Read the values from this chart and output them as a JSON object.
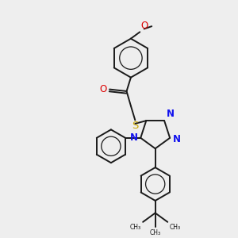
{
  "bg_color": "#eeeeee",
  "bond_color": "#1a1a1a",
  "N_color": "#1010ee",
  "O_color": "#dd0000",
  "S_color": "#ccaa00",
  "bond_width": 1.4,
  "fig_width": 3.0,
  "fig_height": 3.0,
  "dpi": 100,
  "xlim": [
    0,
    10
  ],
  "ylim": [
    0,
    10
  ]
}
